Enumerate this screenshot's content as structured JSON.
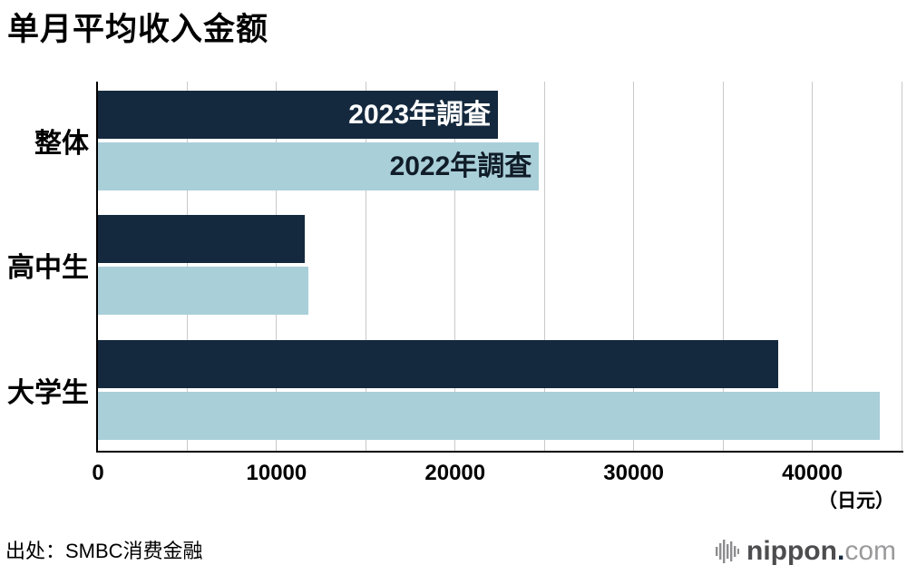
{
  "title": "单月平均收入金额",
  "unit_label": "（日元）",
  "source": "出处：SMBC消费金融",
  "logo": {
    "mark": "soundwave-bars-icon",
    "name": "nippon",
    "dot": ".",
    "tld": "com"
  },
  "colors": {
    "series_2023": "#14293E",
    "series_2022": "#A9CFD9",
    "grid": "#C9C9C9",
    "axis": "#000000",
    "legend_2023_text": "#FFFFFF",
    "legend_2022_text": "#101C28"
  },
  "chart_data": {
    "type": "bar",
    "orientation": "horizontal",
    "title": "单月平均收入金额",
    "categories": [
      "整体",
      "高中生",
      "大学生"
    ],
    "series": [
      {
        "name": "2023年調査",
        "color": "#14293E",
        "values": [
          22400,
          11600,
          38100
        ]
      },
      {
        "name": "2022年調査",
        "color": "#A9CFD9",
        "values": [
          24700,
          11800,
          43800
        ]
      }
    ],
    "xlabel": "（日元）",
    "xlim": [
      0,
      45000
    ],
    "xticks": [
      0,
      10000,
      20000,
      30000,
      40000
    ],
    "grid_interval": 5000,
    "grid": true,
    "legend_position": "inside-first-category-bars"
  }
}
